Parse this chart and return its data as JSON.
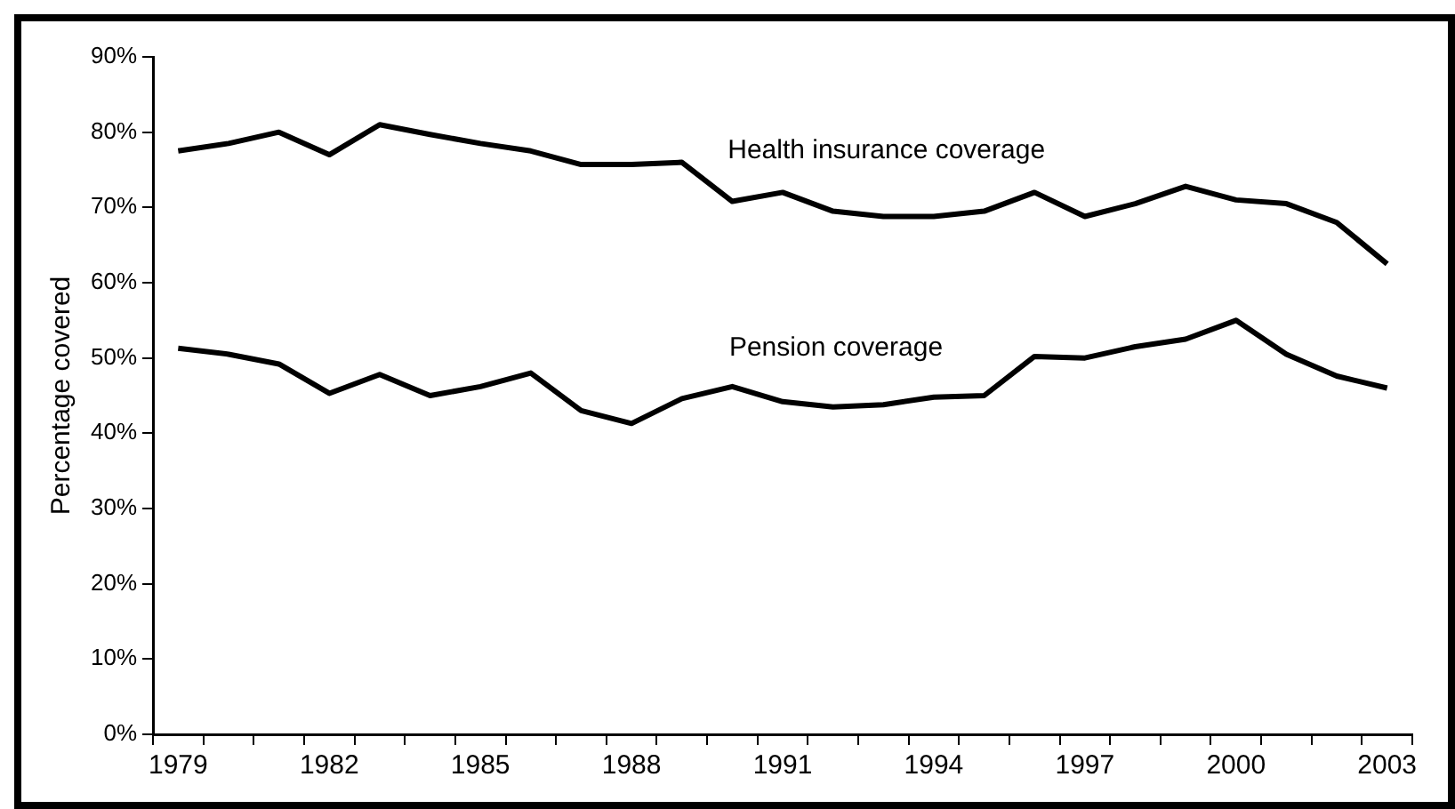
{
  "chart_data": {
    "type": "line",
    "ylabel": "Percentage covered",
    "categories": [
      "1979",
      null,
      null,
      "1982",
      null,
      null,
      "1985",
      null,
      null,
      "1988",
      null,
      null,
      "1991",
      null,
      null,
      "1994",
      null,
      null,
      "1997",
      null,
      null,
      "2000",
      null,
      null,
      "2003"
    ],
    "series": [
      {
        "name": "Health insurance coverage",
        "color": "#000000",
        "values": [
          77.5,
          78.5,
          80,
          77,
          81,
          79.7,
          78.5,
          77.5,
          75.7,
          75.7,
          76,
          70.8,
          72,
          69.5,
          68.8,
          68.8,
          69.5,
          72,
          68.8,
          70.5,
          72.8,
          71,
          70.5,
          68,
          62.5
        ]
      },
      {
        "name": "Pension coverage",
        "color": "#000000",
        "values": [
          51.3,
          50.5,
          49.2,
          45.3,
          47.8,
          45,
          46.2,
          48,
          43,
          41.3,
          44.6,
          46.2,
          44.2,
          43.5,
          43.8,
          44.8,
          45,
          50.2,
          50,
          51.5,
          52.5,
          55,
          50.5,
          47.6,
          46
        ]
      }
    ],
    "ylim": [
      0,
      90
    ],
    "yticks": [
      {
        "value": 0,
        "label": "0%"
      },
      {
        "value": 10,
        "label": "10%"
      },
      {
        "value": 20,
        "label": "20%"
      },
      {
        "value": 30,
        "label": "30%"
      },
      {
        "value": 40,
        "label": "40%"
      },
      {
        "value": 50,
        "label": "50%"
      },
      {
        "value": 60,
        "label": "60%"
      },
      {
        "value": 70,
        "label": "70%"
      },
      {
        "value": 80,
        "label": "80%"
      },
      {
        "value": 90,
        "label": "90%"
      }
    ],
    "grid": false,
    "legend": false,
    "marker": "none",
    "line_style": "solid"
  }
}
